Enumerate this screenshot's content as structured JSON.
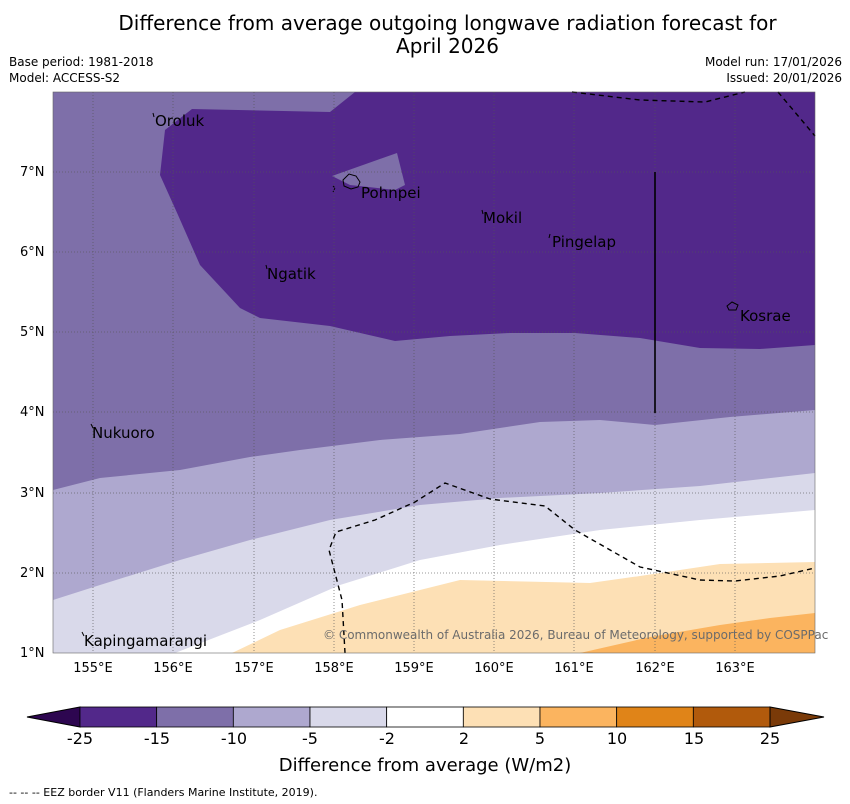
{
  "title_line1": "Difference from average outgoing longwave radiation forecast for",
  "title_line2": "April 2026",
  "base_period": "Base period: 1981-2018",
  "model": "Model: ACCESS-S2",
  "model_run": "Model run: 17/01/2026",
  "issued": "Issued: 20/01/2026",
  "y_ticks": [
    "7°N",
    "6°N",
    "5°N",
    "4°N",
    "3°N",
    "2°N",
    "1°N"
  ],
  "x_ticks": [
    "155°E",
    "156°E",
    "157°E",
    "158°E",
    "159°E",
    "160°E",
    "161°E",
    "162°E",
    "163°E"
  ],
  "places": {
    "oroluk": "Oroluk",
    "pohnpei": "Pohnpei",
    "mokil": "Mokil",
    "pingelap": "Pingelap",
    "ngatik": "Ngatik",
    "kosrae": "Kosrae",
    "nukuoro": "Nukuoro",
    "kapingamarangi": "Kapingamarangi"
  },
  "copyright": "© Commonwealth of Australia 2026, Bureau of Meteorology, supported by COSPPac",
  "colorbar": {
    "ticks": [
      "-25",
      "-15",
      "-10",
      "-5",
      "-2",
      "2",
      "5",
      "10",
      "15",
      "25"
    ],
    "colors": [
      "#52288a",
      "#7e6fa9",
      "#aea8cf",
      "#d9d9ea",
      "#ffffff",
      "#fde0b5",
      "#fbb45f",
      "#e08418",
      "#b15a0c"
    ],
    "under_color": "#2d0650",
    "over_color": "#7a3a08",
    "label": "Difference from average (W/m2)"
  },
  "footnote": "--  --  -- EEZ border V11 (Flanders Marine Institute, 2019)."
}
